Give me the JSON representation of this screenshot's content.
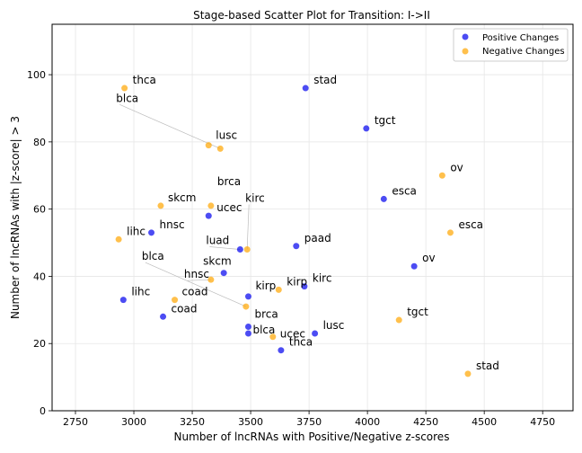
{
  "chart_data": {
    "type": "scatter",
    "title": "Stage-based Scatter Plot for Transition: I->II",
    "xlabel": "Number of lncRNAs with Positive/Negative z-scores",
    "ylabel": "Number of lncRNAs with |z-score| > 3",
    "xlim": [
      2650,
      4880
    ],
    "ylim": [
      0,
      115
    ],
    "xticks": [
      2750,
      3000,
      3250,
      3500,
      3750,
      4000,
      4250,
      4500,
      4750
    ],
    "yticks": [
      0,
      20,
      40,
      60,
      80,
      100
    ],
    "grid": true,
    "legend_position": "top-right",
    "series": [
      {
        "name": "Positive Changes",
        "color": "#0000ee",
        "points": [
          {
            "label": "stad",
            "x": 3735,
            "y": 96
          },
          {
            "label": "tgct",
            "x": 3995,
            "y": 84
          },
          {
            "label": "esca",
            "x": 4070,
            "y": 63
          },
          {
            "label": "ucec",
            "x": 3320,
            "y": 58
          },
          {
            "label": "hnsc",
            "x": 3075,
            "y": 53
          },
          {
            "label": "luad",
            "x": 3455,
            "y": 48
          },
          {
            "label": "paad",
            "x": 3695,
            "y": 49
          },
          {
            "label": "ov",
            "x": 4200,
            "y": 43
          },
          {
            "label": "skcm",
            "x": 3385,
            "y": 41
          },
          {
            "label": "kirc",
            "x": 3730,
            "y": 37
          },
          {
            "label": "kirp",
            "x": 3490,
            "y": 34
          },
          {
            "label": "lihc",
            "x": 2955,
            "y": 33
          },
          {
            "label": "coad",
            "x": 3125,
            "y": 28
          },
          {
            "label": "brca",
            "x": 3490,
            "y": 25
          },
          {
            "label": "lusc",
            "x": 3775,
            "y": 23
          },
          {
            "label": "blca",
            "x": 3490,
            "y": 23
          },
          {
            "label": "thca",
            "x": 3630,
            "y": 18
          }
        ]
      },
      {
        "name": "Negative Changes",
        "color": "#ffa500",
        "points": [
          {
            "label": "thca",
            "x": 2960,
            "y": 96
          },
          {
            "label": "blca",
            "x": 3370,
            "y": 78
          },
          {
            "label": "lusc",
            "x": 3320,
            "y": 79
          },
          {
            "label": "ov",
            "x": 4320,
            "y": 70
          },
          {
            "label": "brca",
            "x": 3330,
            "y": 61
          },
          {
            "label": "skcm",
            "x": 3115,
            "y": 61
          },
          {
            "label": "esca",
            "x": 4355,
            "y": 53
          },
          {
            "label": "lihc",
            "x": 2935,
            "y": 51
          },
          {
            "label": "kirc",
            "x": 3485,
            "y": 48
          },
          {
            "label": "hnsc",
            "x": 3330,
            "y": 39
          },
          {
            "label": "kirp",
            "x": 3620,
            "y": 36
          },
          {
            "label": "coad",
            "x": 3175,
            "y": 33
          },
          {
            "label": "blca",
            "x": 3480,
            "y": 31
          },
          {
            "label": "tgct",
            "x": 4135,
            "y": 27
          },
          {
            "label": "ucec",
            "x": 3595,
            "y": 22
          },
          {
            "label": "stad",
            "x": 4430,
            "y": 11
          }
        ]
      }
    ]
  }
}
